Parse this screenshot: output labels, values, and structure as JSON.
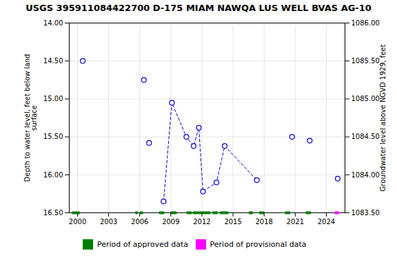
{
  "chart_data": {
    "type": "line",
    "title": "USGS 395911084422700 D-175 MIAM NAWQA LUS WELL BVAS AG-10",
    "ylabel": "Depth to water level, feet below land\nsurface",
    "y2label": "Groundwater level above NGVD 1929, feet",
    "xlim": [
      1999.2,
      2025.8
    ],
    "xticks": [
      2000,
      2003,
      2006,
      2009,
      2012,
      2015,
      2018,
      2021,
      2024
    ],
    "ylim": [
      16.5,
      14.0
    ],
    "yticks": [
      {
        "value": 14.0,
        "label": "14.00"
      },
      {
        "value": 14.5,
        "label": "14.50"
      },
      {
        "value": 15.0,
        "label": "15.00"
      },
      {
        "value": 15.5,
        "label": "15.50"
      },
      {
        "value": 16.0,
        "label": "16.00"
      },
      {
        "value": 16.5,
        "label": "16.50"
      }
    ],
    "y2lim": [
      1083.5,
      1086.0
    ],
    "y2ticks": [
      {
        "value": 1086.0,
        "label": "1086.00"
      },
      {
        "value": 1085.5,
        "label": "1085.50"
      },
      {
        "value": 1085.0,
        "label": "1085.00"
      },
      {
        "value": 1084.5,
        "label": "1084.50"
      },
      {
        "value": 1084.0,
        "label": "1084.00"
      },
      {
        "value": 1083.5,
        "label": "1083.50"
      }
    ],
    "grid": true,
    "series": [
      {
        "type": "scatter",
        "marker": "circle",
        "color": "#0000CC",
        "x": [
          2000.5,
          2006.4,
          2006.9,
          2020.7,
          2022.4,
          2025.1
        ],
        "values": [
          14.5,
          14.75,
          15.58,
          15.5,
          15.55,
          16.05
        ]
      },
      {
        "type": "line",
        "line_style": "dashed",
        "marker": "circle",
        "color": "#0000CC",
        "x": [
          2008.3,
          2009.1,
          2010.5,
          2011.2,
          2011.7,
          2012.1,
          2013.4,
          2014.2,
          2017.3
        ],
        "values": [
          16.35,
          15.05,
          15.5,
          15.62,
          15.38,
          16.22,
          16.1,
          15.62,
          16.07
        ]
      }
    ],
    "periods": [
      {
        "name": "Period of approved data",
        "color": "#008000",
        "ranges": [
          [
            1999.5,
            2000.25
          ],
          [
            2005.6,
            2005.85
          ],
          [
            2006.05,
            2006.35
          ],
          [
            2007.9,
            2008.4
          ],
          [
            2009.0,
            2009.6
          ],
          [
            2010.55,
            2011.05
          ],
          [
            2011.15,
            2012.85
          ],
          [
            2013.05,
            2013.55
          ],
          [
            2013.75,
            2014.6
          ],
          [
            2016.55,
            2016.95
          ],
          [
            2017.55,
            2018.05
          ],
          [
            2020.05,
            2020.55
          ],
          [
            2022.05,
            2022.55
          ]
        ]
      },
      {
        "name": "Period of provisional data",
        "color": "#FF00FF",
        "ranges": [
          [
            2024.85,
            2025.25
          ]
        ]
      }
    ]
  }
}
